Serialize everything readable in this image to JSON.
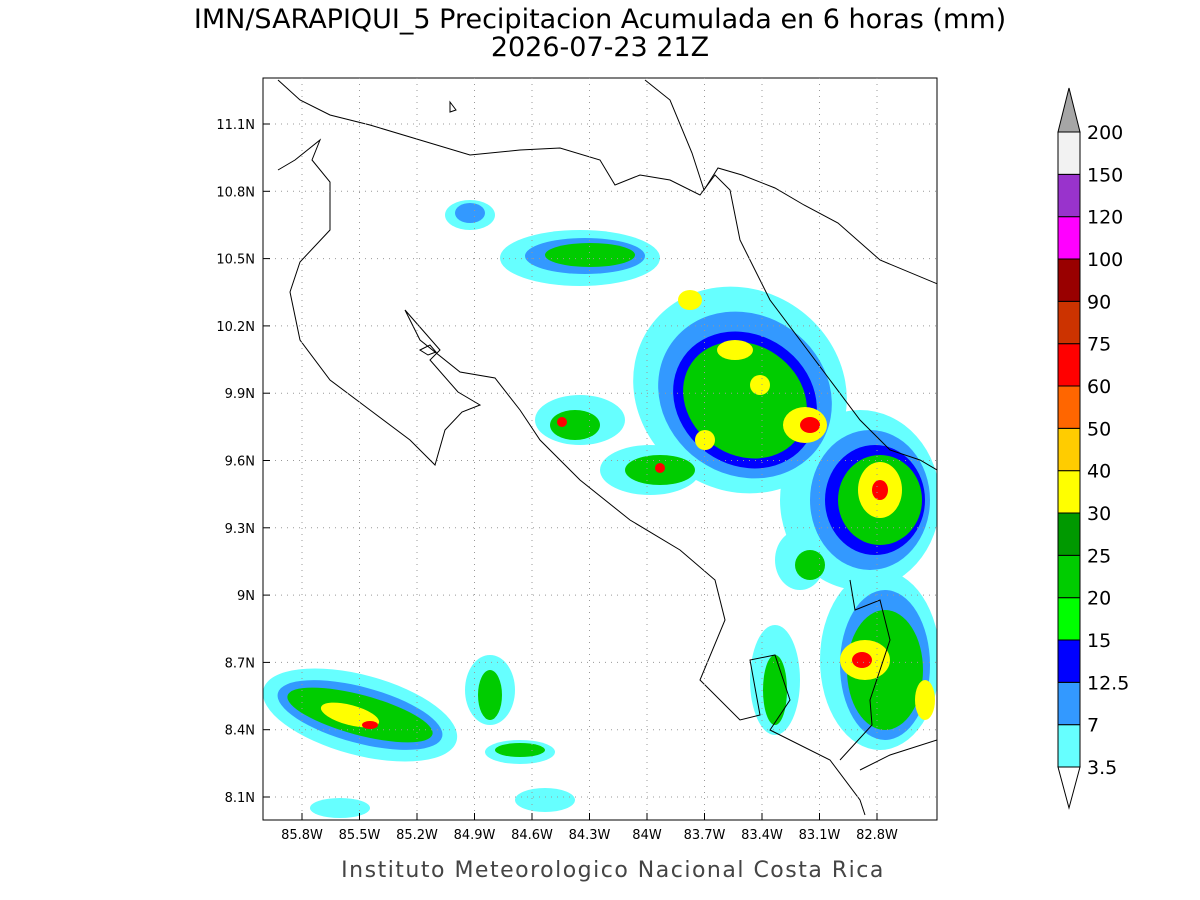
{
  "title": "IMN/SARAPIQUI_5 Precipitacion Acumulada en 6 horas (mm)",
  "subtitle": "2026-07-23 21Z",
  "map": {
    "lat_labels": [
      "11.1N",
      "10.8N",
      "10.5N",
      "10.2N",
      "9.9N",
      "9.6N",
      "9.3N",
      "9N",
      "8.7N",
      "8.4N",
      "8.1N"
    ],
    "lon_labels": [
      "85.8W",
      "85.5W",
      "85.2W",
      "84.9W",
      "84.6W",
      "84.3W",
      "84W",
      "83.7W",
      "83.4W",
      "83.1W",
      "82.8W"
    ]
  },
  "colorbar": {
    "levels": [
      3.5,
      7,
      12.5,
      15,
      20,
      25,
      30,
      40,
      50,
      60,
      75,
      90,
      100,
      120,
      150,
      200
    ],
    "colors": [
      "#66ffff",
      "#3399ff",
      "#0000ff",
      "#00ff00",
      "#00cc00",
      "#009900",
      "#ffff00",
      "#ffcc00",
      "#ff6600",
      "#ff0000",
      "#cc3300",
      "#990000",
      "#ff00ff",
      "#9933cc",
      "#f2f2f2"
    ],
    "over_color": "#a6a6a6",
    "under_color": "#ffffff"
  },
  "credit": "Instituto Meteorologico Nacional Costa Rica"
}
